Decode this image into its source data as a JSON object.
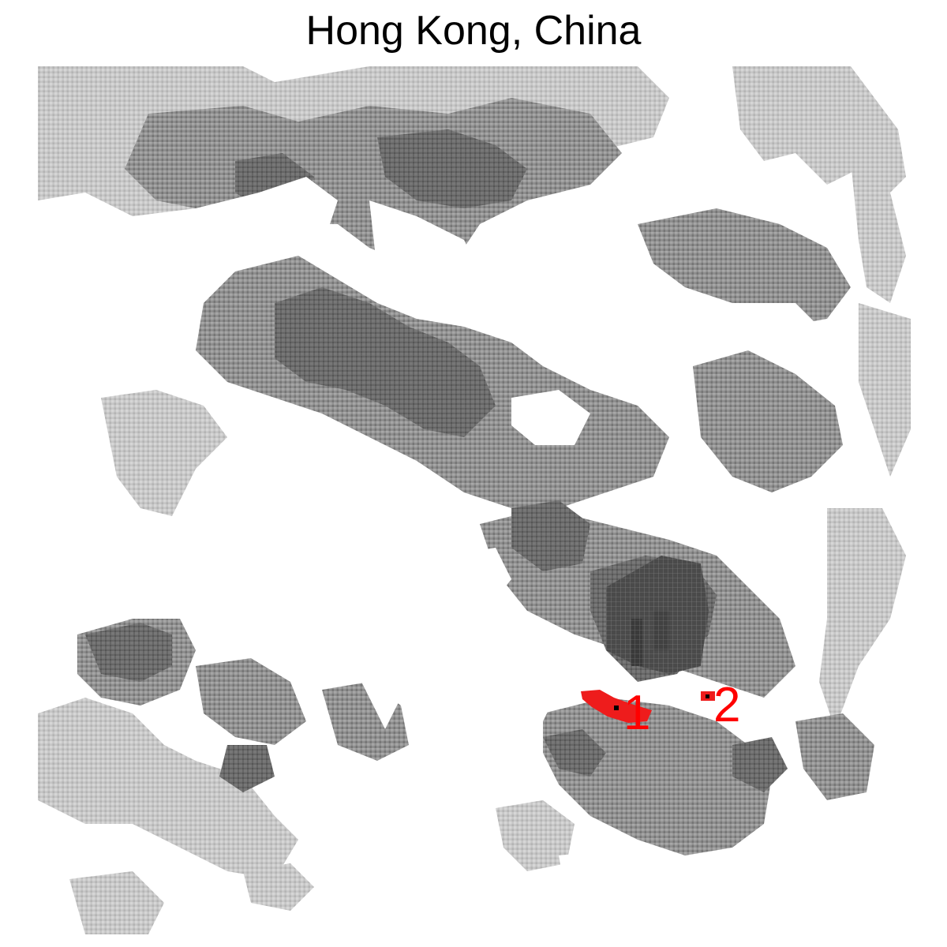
{
  "title": "Hong Kong, China",
  "colors": {
    "background": "#ffffff",
    "light_urban": "#c2c2c2",
    "medium_urban": "#8a8a8a",
    "dense_urban": "#5e5e5e",
    "core_urban": "#3d3d3d",
    "highlight": "#ee1c1c",
    "highlight_text": "#ff0000"
  },
  "legend_levels": [
    "light",
    "medium",
    "dense",
    "core"
  ],
  "highlights": [
    {
      "label": "1"
    },
    {
      "label": "2"
    }
  ]
}
